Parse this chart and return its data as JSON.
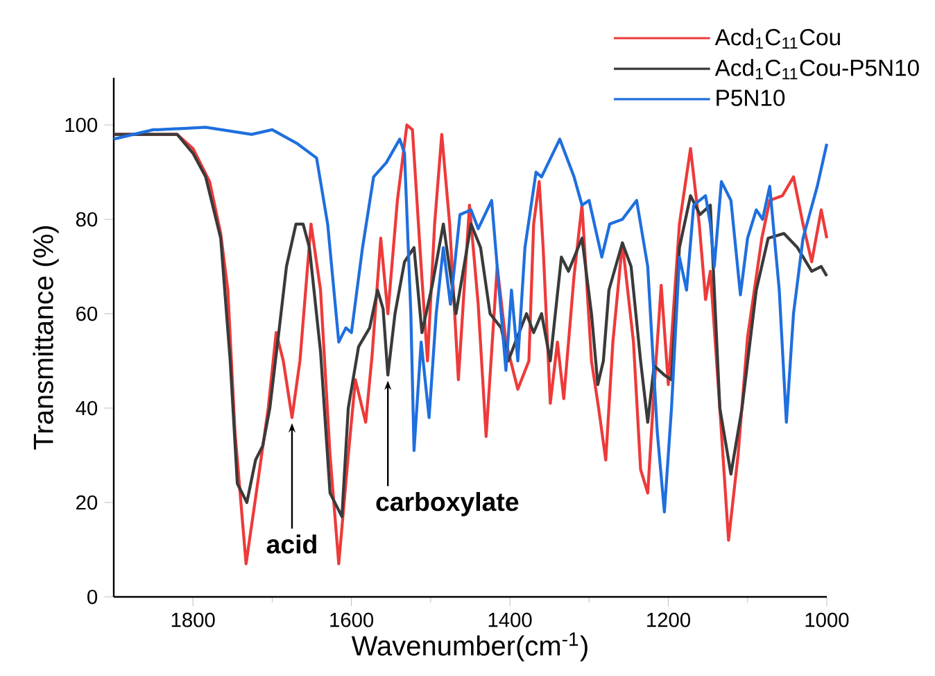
{
  "chart_data": {
    "type": "line",
    "xlabel": "Wavenumber(cm$^{-1}$)",
    "ylabel": "Transmittance (%)",
    "xlim": [
      1900,
      1000
    ],
    "xticks": [
      1800,
      1600,
      1400,
      1200,
      1000
    ],
    "ylim": [
      0,
      110
    ],
    "yticks": [
      0,
      20,
      40,
      60,
      80,
      100
    ],
    "legend": "top right",
    "grid": false,
    "marker": "none",
    "line_style": "solid",
    "series": [
      {
        "name": "Acd$_{1}$C$_{11}$Cou",
        "color": "#ee3a3a",
        "x": [
          1900,
          1850,
          1820,
          1800,
          1779,
          1765,
          1756,
          1747,
          1733,
          1721,
          1705,
          1695,
          1686,
          1675,
          1665,
          1651,
          1639,
          1627,
          1616,
          1604,
          1595,
          1582,
          1574,
          1563,
          1554,
          1542,
          1530,
          1523,
          1512,
          1504,
          1495,
          1486,
          1476,
          1465,
          1451,
          1440,
          1430,
          1416,
          1405,
          1390,
          1376,
          1370,
          1363,
          1358,
          1349,
          1340,
          1332,
          1319,
          1309,
          1297,
          1288,
          1279,
          1270,
          1258,
          1244,
          1235,
          1226,
          1218,
          1209,
          1200,
          1186,
          1172,
          1161,
          1153,
          1147,
          1135,
          1124,
          1112,
          1100,
          1082,
          1072,
          1056,
          1042,
          1030,
          1019,
          1007,
          1000
        ],
        "values": [
          98,
          98,
          98,
          95,
          88,
          77,
          65,
          35,
          7,
          21,
          40,
          56,
          50,
          38,
          50,
          79,
          65,
          30,
          7,
          30,
          46,
          37,
          51,
          76,
          60,
          84,
          100,
          99,
          70,
          50,
          79,
          98,
          79,
          46,
          83,
          62,
          34,
          70,
          54,
          44,
          50,
          79,
          88,
          74,
          41,
          54,
          42,
          68,
          83,
          50,
          40,
          29,
          54,
          75,
          54,
          27,
          22,
          44,
          66,
          45,
          79,
          95,
          79,
          63,
          69,
          40,
          12,
          30,
          55,
          76,
          84,
          85,
          89,
          79,
          71,
          82,
          76
        ]
      },
      {
        "name": "Acd$_{1}$C$_{11}$Cou-P5N10",
        "color": "#3a3a3a",
        "x": [
          1900,
          1850,
          1820,
          1800,
          1784,
          1765,
          1753,
          1744,
          1732,
          1721,
          1712,
          1703,
          1691,
          1682,
          1670,
          1661,
          1653,
          1639,
          1627,
          1612,
          1604,
          1591,
          1577,
          1567,
          1560,
          1554,
          1545,
          1533,
          1521,
          1511,
          1498,
          1484,
          1468,
          1449,
          1437,
          1425,
          1411,
          1402,
          1393,
          1379,
          1370,
          1360,
          1349,
          1335,
          1326,
          1309,
          1297,
          1289,
          1282,
          1275,
          1258,
          1247,
          1235,
          1226,
          1218,
          1205,
          1196,
          1186,
          1172,
          1160,
          1147,
          1135,
          1121,
          1107,
          1089,
          1074,
          1054,
          1037,
          1019,
          1007,
          1000
        ],
        "values": [
          98,
          98,
          98,
          94,
          89,
          76,
          50,
          24,
          20,
          29,
          32,
          40,
          57,
          70,
          79,
          79,
          74,
          52,
          22,
          17,
          40,
          53,
          57,
          65,
          61,
          47,
          60,
          71,
          74,
          56,
          66,
          79,
          60,
          79,
          74,
          60,
          57,
          50,
          54,
          60,
          56,
          60,
          50,
          72,
          69,
          76,
          60,
          45,
          50,
          65,
          75,
          70,
          50,
          37,
          49,
          47,
          46,
          74,
          85,
          81,
          83,
          40,
          26,
          40,
          65,
          76,
          77,
          74,
          69,
          70,
          68
        ]
      },
      {
        "name": "P5N10",
        "color": "#1f6fde",
        "x": [
          1900,
          1850,
          1844,
          1784,
          1726,
          1700,
          1668,
          1644,
          1630,
          1616,
          1607,
          1600,
          1586,
          1572,
          1556,
          1539,
          1533,
          1525,
          1521,
          1512,
          1502,
          1493,
          1484,
          1475,
          1463,
          1449,
          1440,
          1423,
          1405,
          1398,
          1390,
          1381,
          1367,
          1360,
          1337,
          1319,
          1309,
          1300,
          1284,
          1274,
          1258,
          1240,
          1226,
          1214,
          1205,
          1196,
          1186,
          1177,
          1168,
          1153,
          1147,
          1142,
          1133,
          1121,
          1109,
          1100,
          1089,
          1081,
          1072,
          1060,
          1051,
          1042,
          1030,
          1012,
          1000
        ],
        "values": [
          97,
          99,
          99,
          99.5,
          98,
          99,
          96,
          93,
          79,
          54,
          57,
          56,
          74,
          89,
          92,
          97,
          94,
          60,
          31,
          54,
          38,
          60,
          74,
          62,
          81,
          82,
          78,
          84,
          48,
          65,
          50,
          74,
          90,
          89,
          97,
          89,
          83,
          84,
          72,
          79,
          80,
          84,
          70,
          35,
          18,
          40,
          72,
          65,
          83,
          85,
          79,
          70,
          88,
          84,
          64,
          76,
          82,
          80,
          87,
          65,
          37,
          60,
          76,
          87,
          96
        ]
      }
    ],
    "annotations": [
      {
        "text": "acid",
        "x": 1675,
        "y": 38
      },
      {
        "text": "carboxylate",
        "x": 1554,
        "y": 47
      }
    ]
  }
}
